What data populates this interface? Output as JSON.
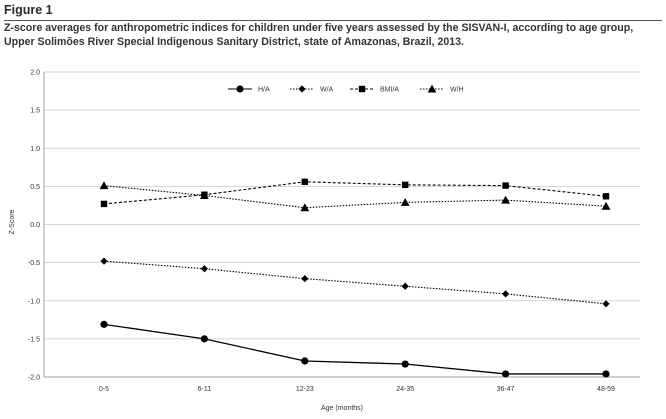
{
  "figure": {
    "label": "Figure 1",
    "caption": "Z-score averages for anthropometric indices for children under five years assessed by the SISVAN-I, according to age group, Upper Solimões River Special Indigenous Sanitary District, state of Amazonas, Brazil, 2013."
  },
  "chart_data": {
    "type": "line",
    "title": "",
    "xlabel": "Age (months)",
    "ylabel": "Z-Score",
    "categories": [
      "0-5",
      "6-11",
      "12-23",
      "24-35",
      "36-47",
      "48-59"
    ],
    "ylim": [
      -2.0,
      2.0
    ],
    "yticks": [
      "2.0",
      "1.5",
      "1.0",
      "0.5",
      "0.0",
      "-0.5",
      "-1.0",
      "-1.5",
      "-2.0"
    ],
    "grid": true,
    "legend_position": "top-center",
    "series": [
      {
        "name": "H/A",
        "marker": "circle",
        "line_style": "solid",
        "values": [
          -1.31,
          -1.5,
          -1.79,
          -1.83,
          -1.96,
          -1.96
        ]
      },
      {
        "name": "W/A",
        "marker": "diamond",
        "line_style": "dotted",
        "values": [
          -0.48,
          -0.58,
          -0.71,
          -0.81,
          -0.91,
          -1.04
        ]
      },
      {
        "name": "BMI/A",
        "marker": "square",
        "line_style": "dashed",
        "values": [
          0.27,
          0.39,
          0.56,
          0.52,
          0.51,
          0.37
        ]
      },
      {
        "name": "W/H",
        "marker": "triangle",
        "line_style": "dotted",
        "values": [
          0.51,
          0.38,
          0.22,
          0.29,
          0.32,
          0.24
        ]
      }
    ],
    "colors": {
      "line": "#000000",
      "grid": "#c8c8c8",
      "axis": "#888888"
    }
  }
}
